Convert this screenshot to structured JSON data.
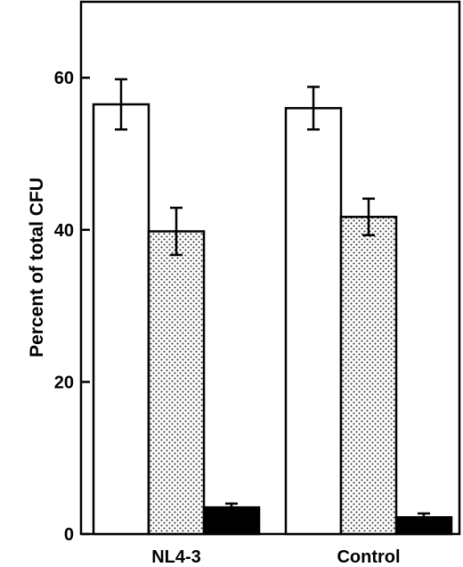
{
  "chart_data": {
    "type": "bar",
    "title": "",
    "xlabel": "",
    "ylabel": "Percent of total CFU",
    "ylim": [
      0,
      70
    ],
    "yticks": [
      0,
      20,
      40,
      60
    ],
    "categories": [
      "NL4-3",
      "Control"
    ],
    "grid": false,
    "legend": "none",
    "series": [
      {
        "fill": "white",
        "values": [
          56.5,
          56.0
        ],
        "errors": [
          3.3,
          2.8
        ]
      },
      {
        "fill": "stipple",
        "values": [
          39.8,
          41.7
        ],
        "errors": [
          3.1,
          2.4
        ]
      },
      {
        "fill": "black",
        "values": [
          3.5,
          2.2
        ],
        "errors": [
          0.5,
          0.5
        ]
      }
    ],
    "colors": {
      "ink": "#000000",
      "background": "#ffffff",
      "stipple_dot": "#333333"
    }
  }
}
